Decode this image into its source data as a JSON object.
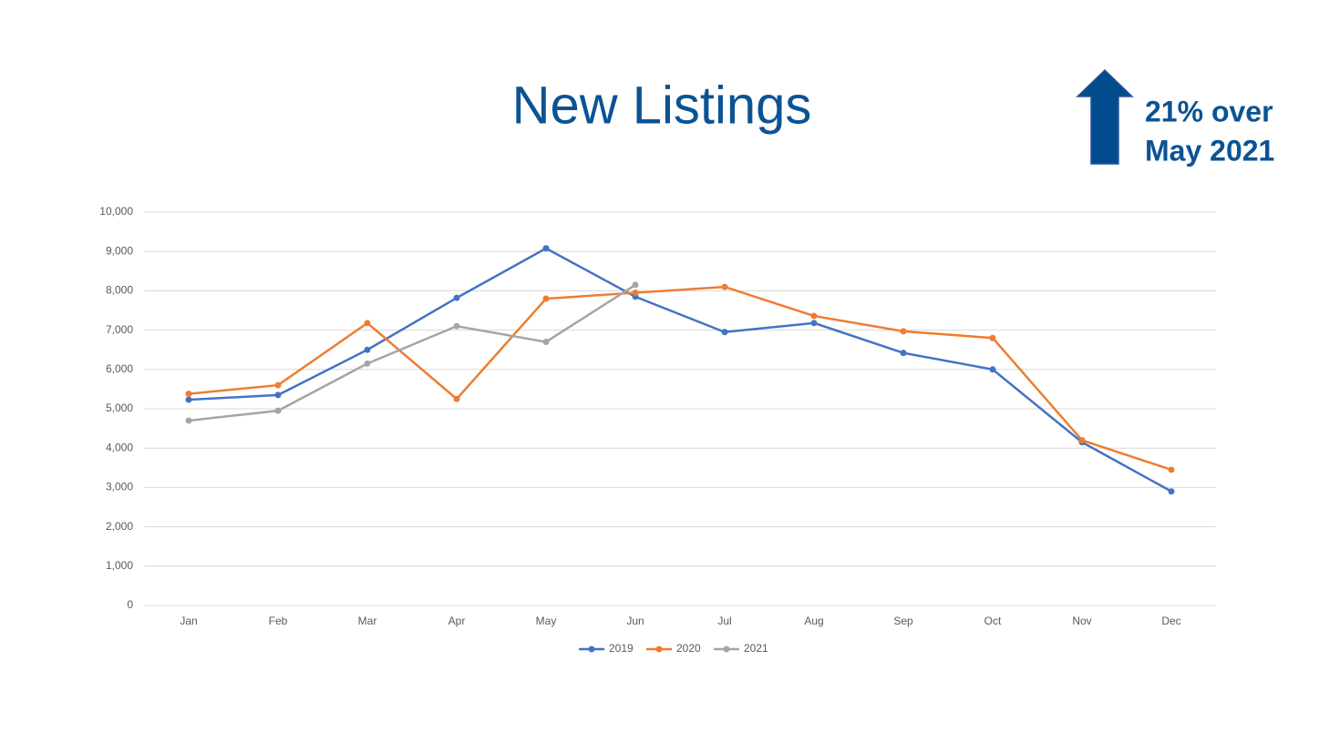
{
  "chart_data": {
    "type": "line",
    "title": "New Listings",
    "annotation": [
      "21% over",
      "May 2021"
    ],
    "categories": [
      "Jan",
      "Feb",
      "Mar",
      "Apr",
      "May",
      "Jun",
      "Jul",
      "Aug",
      "Sep",
      "Oct",
      "Nov",
      "Dec"
    ],
    "series": [
      {
        "name": "2019",
        "color": "#4472c4",
        "values": [
          5230,
          5350,
          6500,
          7820,
          9080,
          7850,
          6950,
          7180,
          6420,
          6000,
          4150,
          2900
        ]
      },
      {
        "name": "2020",
        "color": "#ed7d31",
        "values": [
          5380,
          5600,
          7180,
          5250,
          7800,
          7950,
          8100,
          7360,
          6970,
          6800,
          4200,
          3450
        ]
      },
      {
        "name": "2021",
        "color": "#a5a5a5",
        "values": [
          4700,
          4950,
          6150,
          7100,
          6700,
          8150,
          null,
          null,
          null,
          null,
          null,
          null
        ]
      }
    ],
    "ylim": [
      0,
      10000
    ],
    "yticks": [
      0,
      {
        "value": 1000,
        "label": "1,000"
      },
      {
        "value": 2000,
        "label": "2,000"
      },
      {
        "value": 3000,
        "label": "3,000"
      },
      {
        "value": 4000,
        "label": "4,000"
      },
      {
        "value": 5000,
        "label": "5,000"
      },
      {
        "value": 6000,
        "label": "6,000"
      },
      {
        "value": 7000,
        "label": "7,000"
      },
      {
        "value": 8000,
        "label": "8,000"
      },
      {
        "value": 9000,
        "label": "9,000"
      },
      {
        "value": 10000,
        "label": "10,000"
      }
    ],
    "grid": true,
    "legend": "bottom"
  }
}
